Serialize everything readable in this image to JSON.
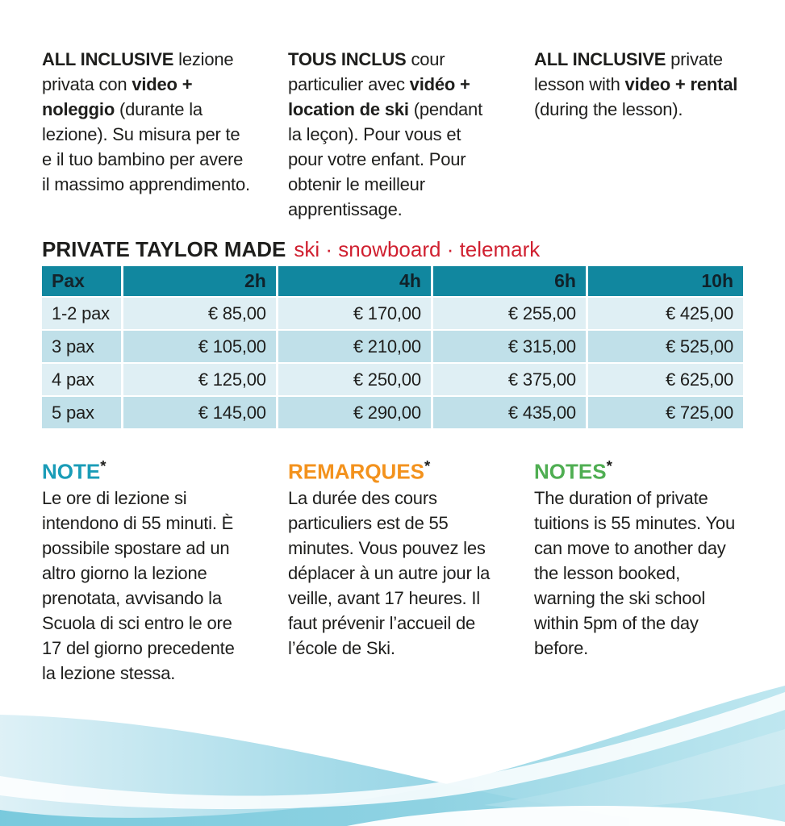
{
  "colors": {
    "text": "#1e1e1c",
    "table_header_bg": "#11879f",
    "table_row_light": "#dfeff4",
    "table_row_dark": "#c0e0e9",
    "accent_red": "#d02030",
    "note_it_teal": "#1a9cb7",
    "note_fr_orange": "#f3921d",
    "note_en_green": "#4fae52",
    "wave_blue": "#7fcbdf"
  },
  "intro": [
    {
      "lang": "italian",
      "segments": [
        {
          "text": "ALL INCLUSIVE ",
          "bold": true
        },
        {
          "text": "lezione privata con ",
          "bold": false
        },
        {
          "text": "video + noleggio ",
          "bold": true
        },
        {
          "text": "(durante la lezione). Su misura per te e il tuo bambino per avere il massimo apprendimento.",
          "bold": false
        }
      ]
    },
    {
      "lang": "french",
      "segments": [
        {
          "text": "TOUS INCLUS ",
          "bold": true
        },
        {
          "text": "cour particulier avec ",
          "bold": false
        },
        {
          "text": "vidéo + location de ski ",
          "bold": true
        },
        {
          "text": "(pendant la leçon). Pour vous et pour votre enfant. Pour obtenir le meilleur apprentissage.",
          "bold": false
        }
      ]
    },
    {
      "lang": "english",
      "segments": [
        {
          "text": "ALL INCLUSIVE ",
          "bold": true
        },
        {
          "text": "private lesson with ",
          "bold": false
        },
        {
          "text": "video + rental ",
          "bold": true
        },
        {
          "text": "(during the lesson).",
          "bold": false
        }
      ]
    }
  ],
  "pricing": {
    "title": "PRIVATE TAYLOR MADE",
    "disciplines": "ski · snowboard · telemark"
  },
  "table": {
    "columns": [
      "Pax",
      "2h",
      "4h",
      "6h",
      "10h"
    ],
    "rows": [
      [
        "1-2 pax",
        "€ 85,00",
        "€ 170,00",
        "€ 255,00",
        "€ 425,00"
      ],
      [
        "3 pax",
        "€ 105,00",
        "€ 210,00",
        "€ 315,00",
        "€ 525,00"
      ],
      [
        "4 pax",
        "€ 125,00",
        "€ 250,00",
        "€ 375,00",
        "€ 625,00"
      ],
      [
        "5 pax",
        "€ 145,00",
        "€ 290,00",
        "€ 435,00",
        "€ 725,00"
      ]
    ]
  },
  "notes": [
    {
      "heading": "NOTE",
      "asterisk": "*",
      "color": "#1a9cb7",
      "body": "Le ore di lezione si intendono di 55 minuti. È possibile spostare ad un altro giorno la lezione prenotata, avvisando la Scuola di sci entro le ore 17 del giorno precedente la lezione stessa."
    },
    {
      "heading": "REMARQUES",
      "asterisk": "*",
      "color": "#f3921d",
      "body": "La durée des cours particuliers est de 55 minutes. Vous pouvez les déplacer à un autre jour la veille, avant 17 heures. Il faut prévenir l’accueil de l’école de Ski."
    },
    {
      "heading": "NOTES",
      "asterisk": "*",
      "color": "#4fae52",
      "body": "The duration of private tuitions is 55 minutes. You can move to another day the lesson booked, warning the ski school within 5pm of the day before."
    }
  ]
}
